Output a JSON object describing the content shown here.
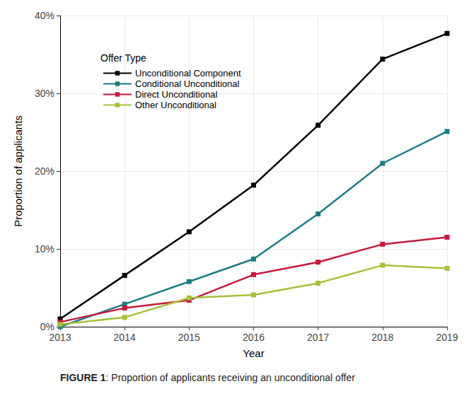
{
  "chart_data": {
    "type": "line",
    "caption": "FIGURE 1: Proportion of applicants receiving an unconditional offer",
    "legend_title": "Offer Type",
    "x_label": "Year",
    "y_label": "Proportion of applicants",
    "categories": [
      "2013",
      "2014",
      "2015",
      "2016",
      "2017",
      "2018",
      "2019"
    ],
    "series": [
      {
        "name": "Unconditional Component",
        "color": "#000000",
        "values": [
          1.0,
          6.6,
          12.2,
          18.2,
          25.9,
          34.4,
          37.7
        ]
      },
      {
        "name": "Conditional Unconditional",
        "color": "#1b7d83",
        "values": [
          0.0,
          2.9,
          5.8,
          8.7,
          14.5,
          21.0,
          25.1
        ]
      },
      {
        "name": "Direct Unconditional",
        "color": "#c8183c",
        "values": [
          0.6,
          2.4,
          3.4,
          6.7,
          8.3,
          10.6,
          11.5
        ]
      },
      {
        "name": "Other Unconditional",
        "color": "#a5c13a",
        "values": [
          0.3,
          1.2,
          3.7,
          4.1,
          5.6,
          7.9,
          7.5
        ]
      }
    ],
    "ylim": [
      0,
      40
    ],
    "yticks": [
      {
        "value": 0,
        "label": "0%"
      },
      {
        "value": 10,
        "label": "10%"
      },
      {
        "value": 20,
        "label": "20%"
      },
      {
        "value": 30,
        "label": "30%"
      },
      {
        "value": 40,
        "label": "40%"
      }
    ],
    "grid": true,
    "legend": "upper left",
    "marker": "square"
  }
}
